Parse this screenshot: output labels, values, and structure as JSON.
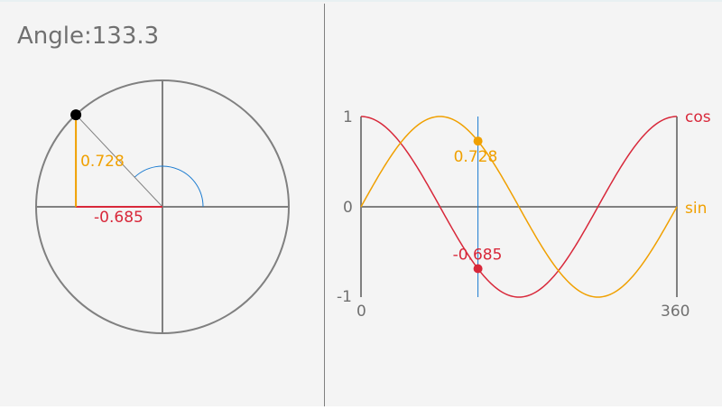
{
  "header": {
    "angle_label": "Angle:133.3"
  },
  "angle_deg": 133.3,
  "values": {
    "sin": 0.728,
    "cos": -0.685,
    "sin_label": "0.728",
    "cos_label": "-0.685"
  },
  "graph": {
    "y_ticks": [
      "1",
      "0",
      "-1"
    ],
    "x_ticks": [
      "0",
      "360"
    ],
    "xlim": [
      0,
      360
    ],
    "ylim": [
      -1,
      1
    ],
    "series": [
      {
        "name": "cos",
        "color": "#d8283a"
      },
      {
        "name": "sin",
        "color": "#f0a000"
      }
    ]
  },
  "colors": {
    "sin": "#f0a000",
    "cos": "#d8283a",
    "angle_arc": "#1a7bd0",
    "axis": "#808080",
    "background": "#f4f4f4",
    "point": "#000000"
  }
}
